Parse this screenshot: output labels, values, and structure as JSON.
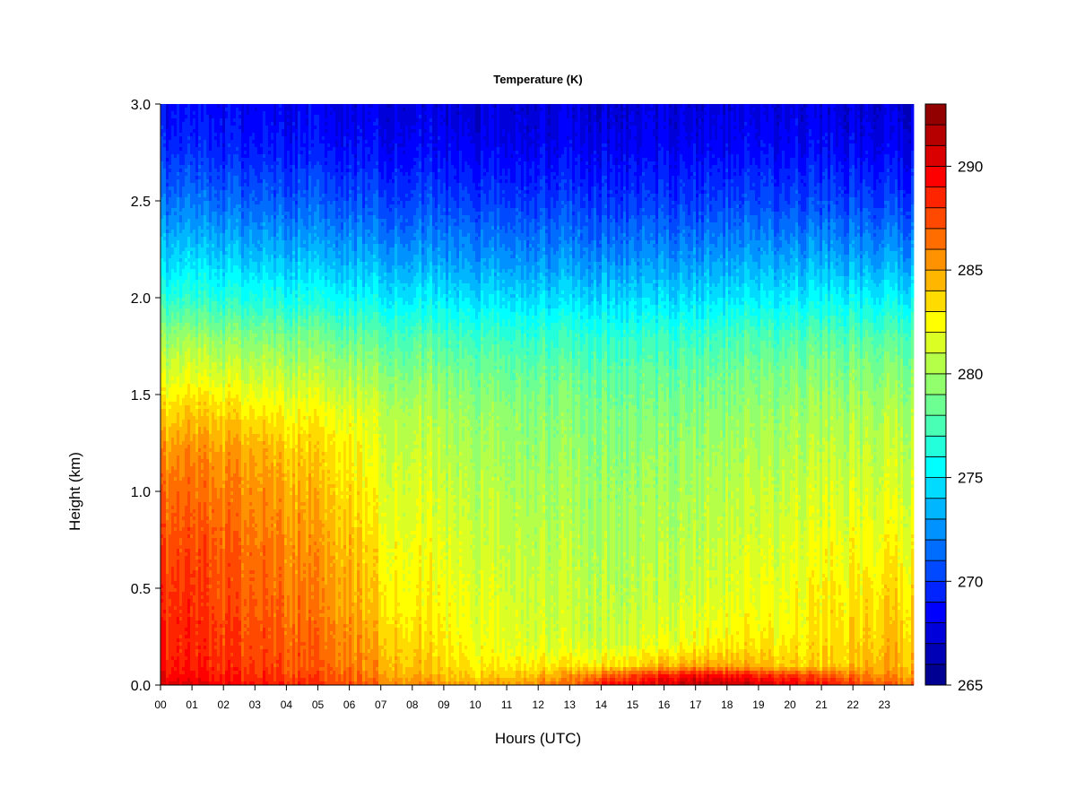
{
  "chart_data": {
    "type": "heatmap",
    "title": "Temperature (K)",
    "xlabel": "Hours (UTC)",
    "ylabel": "Height (km)",
    "xlim": [
      0,
      24
    ],
    "ylim": [
      0,
      3.0
    ],
    "x_ticks": [
      "00",
      "01",
      "02",
      "03",
      "04",
      "05",
      "06",
      "07",
      "08",
      "09",
      "10",
      "11",
      "12",
      "13",
      "14",
      "15",
      "16",
      "17",
      "18",
      "19",
      "20",
      "21",
      "22",
      "23"
    ],
    "y_ticks": [
      "0.0",
      "0.5",
      "1.0",
      "1.5",
      "2.0",
      "2.5",
      "3.0"
    ],
    "colorbar": {
      "min": 265,
      "max": 293,
      "levels": 28,
      "ticks": [
        265,
        270,
        275,
        280,
        285,
        290
      ],
      "tick_labels": [
        "265",
        "270",
        "275",
        "280",
        "285",
        "290"
      ]
    },
    "colormap": "jet",
    "x_grid_hours": [
      0,
      1,
      2,
      3,
      4,
      5,
      6,
      7,
      8,
      9,
      10,
      11,
      12,
      13,
      14,
      15,
      16,
      17,
      18,
      19,
      20,
      21,
      22,
      23,
      23.9
    ],
    "y_grid_km": [
      0,
      0.05,
      0.1,
      0.2,
      0.3,
      0.4,
      0.5,
      0.6,
      0.7,
      0.8,
      1.0,
      1.2,
      1.4,
      1.6,
      1.8,
      2.0,
      2.2,
      2.5,
      2.8,
      3.0
    ],
    "temperature_grid_K": [
      [
        290.5,
        290.0,
        289.5,
        289.0,
        288.5,
        288.0,
        287.5,
        286.5,
        286.0,
        285.5,
        285.0,
        285.5,
        286.0,
        286.5,
        289.0,
        289.5,
        290.5,
        291.5,
        291.0,
        290.5,
        290.0,
        289.0,
        288.0,
        287.0,
        286.5
      ],
      [
        289.5,
        289.0,
        288.8,
        288.3,
        287.8,
        287.3,
        286.8,
        285.5,
        284.8,
        284.3,
        283.8,
        284.0,
        284.3,
        284.8,
        286.5,
        287.5,
        288.5,
        289.5,
        289.0,
        288.5,
        288.0,
        287.0,
        286.3,
        285.5,
        285.2
      ],
      [
        289.0,
        288.7,
        288.3,
        287.8,
        287.3,
        286.8,
        286.3,
        285.0,
        284.2,
        283.6,
        283.0,
        283.0,
        283.0,
        283.0,
        283.0,
        283.5,
        284.3,
        285.0,
        284.8,
        284.3,
        283.8,
        283.5,
        284.2,
        284.8,
        284.5
      ],
      [
        288.5,
        288.3,
        288.0,
        287.5,
        287.0,
        286.5,
        286.0,
        284.5,
        283.7,
        283.2,
        282.5,
        282.0,
        281.7,
        281.3,
        281.2,
        281.5,
        282.0,
        282.5,
        283.0,
        283.0,
        283.0,
        283.2,
        283.8,
        284.3,
        284.0
      ],
      [
        288.5,
        288.3,
        287.8,
        287.3,
        286.8,
        286.2,
        285.6,
        284.0,
        283.2,
        282.8,
        282.2,
        281.8,
        281.4,
        281.0,
        280.8,
        281.0,
        281.5,
        282.0,
        282.3,
        282.5,
        282.5,
        283.0,
        283.5,
        284.0,
        283.8
      ],
      [
        288.3,
        288.0,
        287.5,
        287.0,
        286.5,
        285.8,
        285.2,
        283.6,
        282.9,
        282.5,
        282.0,
        281.6,
        281.2,
        280.8,
        280.6,
        280.8,
        281.2,
        281.6,
        281.8,
        282.0,
        282.2,
        282.8,
        283.2,
        283.6,
        283.4
      ],
      [
        288.0,
        287.8,
        287.3,
        286.8,
        286.3,
        285.6,
        285.0,
        283.3,
        282.7,
        282.3,
        281.8,
        281.4,
        281.0,
        280.7,
        280.5,
        280.6,
        280.9,
        281.2,
        281.5,
        281.8,
        282.0,
        282.5,
        283.0,
        283.3,
        283.1
      ],
      [
        287.8,
        287.6,
        287.2,
        286.6,
        286.0,
        285.4,
        284.8,
        283.0,
        282.5,
        282.1,
        281.6,
        281.2,
        280.9,
        280.6,
        280.4,
        280.5,
        280.7,
        281.0,
        281.3,
        281.6,
        281.8,
        282.2,
        282.6,
        282.9,
        282.7
      ],
      [
        287.5,
        287.3,
        287.0,
        286.4,
        285.8,
        285.1,
        284.5,
        282.8,
        282.3,
        281.9,
        281.4,
        281.0,
        280.7,
        280.4,
        280.2,
        280.3,
        280.5,
        280.8,
        281.1,
        281.4,
        281.6,
        282.0,
        282.3,
        282.6,
        282.4
      ],
      [
        287.2,
        287.0,
        286.7,
        286.1,
        285.5,
        284.8,
        284.2,
        282.5,
        282.0,
        281.6,
        281.2,
        280.8,
        280.5,
        280.2,
        280.0,
        280.1,
        280.3,
        280.6,
        280.9,
        281.2,
        281.4,
        281.7,
        282.0,
        282.2,
        282.0
      ],
      [
        286.5,
        286.3,
        286.0,
        285.5,
        284.9,
        284.2,
        283.6,
        282.0,
        281.6,
        281.2,
        280.8,
        280.4,
        280.1,
        279.9,
        279.7,
        279.8,
        280.0,
        280.3,
        280.5,
        280.8,
        281.0,
        281.2,
        281.4,
        281.6,
        281.4
      ],
      [
        285.5,
        285.5,
        285.2,
        284.8,
        284.0,
        283.5,
        283.0,
        281.5,
        281.1,
        280.7,
        280.3,
        280.0,
        279.7,
        279.5,
        279.3,
        279.4,
        279.6,
        279.8,
        280.0,
        280.2,
        280.4,
        280.6,
        280.8,
        281.0,
        280.8
      ],
      [
        283.5,
        283.8,
        283.6,
        283.0,
        282.5,
        282.3,
        282.0,
        281.0,
        280.5,
        280.2,
        279.8,
        279.5,
        279.2,
        279.0,
        278.8,
        278.9,
        279.0,
        279.2,
        279.4,
        279.6,
        279.8,
        280.0,
        280.2,
        280.4,
        280.2
      ],
      [
        281.5,
        281.6,
        281.4,
        281.0,
        280.7,
        280.5,
        280.3,
        279.6,
        279.3,
        279.1,
        278.8,
        278.6,
        278.4,
        278.2,
        278.0,
        278.1,
        278.2,
        278.4,
        278.6,
        278.8,
        279.0,
        279.1,
        279.2,
        279.3,
        279.2
      ],
      [
        279.5,
        279.5,
        279.3,
        279.0,
        278.8,
        278.6,
        278.4,
        277.9,
        277.7,
        277.5,
        277.3,
        277.1,
        276.9,
        276.7,
        276.6,
        276.7,
        276.8,
        277.0,
        277.2,
        277.4,
        277.6,
        277.7,
        277.8,
        277.8,
        277.7
      ],
      [
        276.5,
        276.5,
        276.3,
        276.1,
        275.9,
        275.8,
        275.6,
        275.3,
        275.1,
        275.0,
        274.8,
        274.6,
        274.5,
        274.4,
        274.3,
        274.4,
        274.5,
        274.6,
        274.8,
        275.0,
        275.1,
        275.2,
        275.3,
        275.3,
        275.2
      ],
      [
        274.3,
        274.2,
        274.0,
        273.8,
        273.7,
        273.5,
        273.4,
        273.2,
        273.0,
        272.9,
        272.8,
        272.6,
        272.5,
        272.4,
        272.3,
        272.4,
        272.5,
        272.6,
        272.8,
        272.9,
        273.0,
        273.0,
        273.0,
        273.0,
        272.9
      ],
      [
        271.5,
        271.4,
        271.2,
        271.0,
        270.9,
        270.8,
        270.7,
        270.5,
        270.4,
        270.3,
        270.2,
        270.1,
        270.0,
        269.9,
        269.8,
        269.9,
        270.0,
        270.1,
        270.2,
        270.3,
        270.3,
        270.3,
        270.3,
        270.2,
        270.1
      ],
      [
        269.3,
        269.2,
        269.0,
        268.9,
        268.8,
        268.7,
        268.6,
        268.5,
        268.4,
        268.3,
        268.2,
        268.1,
        268.0,
        268.0,
        267.9,
        268.0,
        268.1,
        268.2,
        268.2,
        268.3,
        268.3,
        268.3,
        268.2,
        268.1,
        268.0
      ],
      [
        268.5,
        268.4,
        268.3,
        268.2,
        268.1,
        268.0,
        267.9,
        267.8,
        267.7,
        267.6,
        267.5,
        267.5,
        267.4,
        267.4,
        267.3,
        267.4,
        267.5,
        267.5,
        267.6,
        267.6,
        267.6,
        267.6,
        267.5,
        267.4,
        267.3
      ]
    ]
  }
}
